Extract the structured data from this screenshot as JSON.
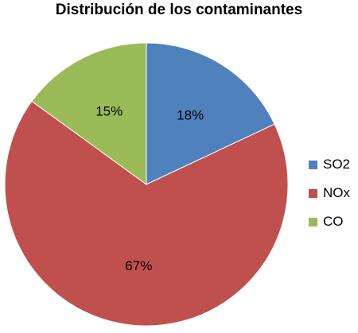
{
  "chart_data": {
    "type": "pie",
    "title": "Distribución de los contaminantes",
    "legend_position": "right",
    "start_angle_deg": 0,
    "direction": "clockwise",
    "slices": [
      {
        "label": "SO2",
        "value": 18,
        "value_label": "18%",
        "color": "#4f81bd"
      },
      {
        "label": "NOx",
        "value": 67,
        "value_label": "67%",
        "color": "#c0504d"
      },
      {
        "label": "CO",
        "value": 15,
        "value_label": "15%",
        "color": "#9bbb59"
      }
    ]
  }
}
